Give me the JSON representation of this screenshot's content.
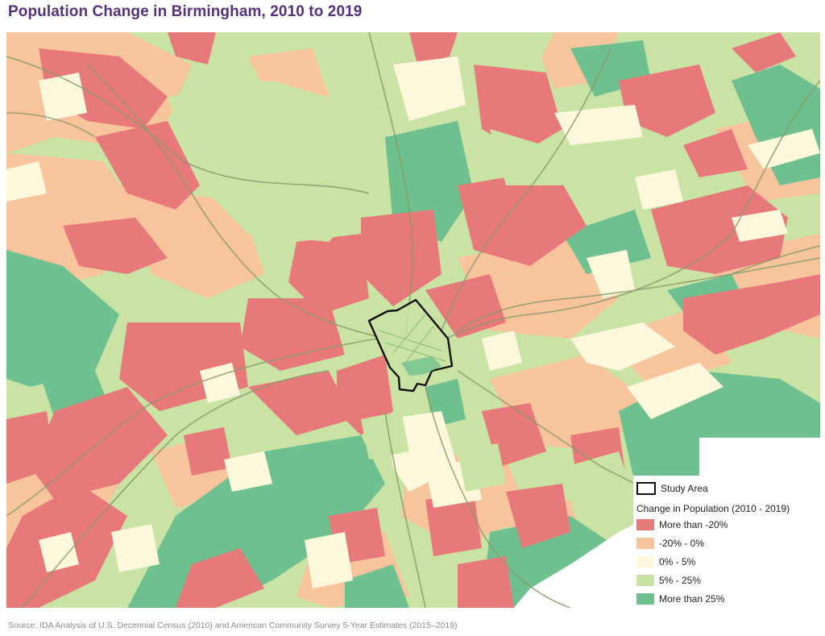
{
  "title": "Population Change in Birmingham, 2010 to 2019",
  "source": "Source: IDA Analysis of U.S. Decennial Census (2010) and American Community Survey 5-Year Estimates (2015–2019)",
  "legend": {
    "study_area_label": "Study Area",
    "title": "Change in Population (2010 - 2019)",
    "items": [
      {
        "label": "More than -20%",
        "color": "#e8797a"
      },
      {
        "label": "-20% - 0%",
        "color": "#f7c49c"
      },
      {
        "label": "0% - 5%",
        "color": "#fdf8dc"
      },
      {
        "label": "5% - 25%",
        "color": "#c8e3a4"
      },
      {
        "label": "More than 25%",
        "color": "#6fc08f"
      }
    ]
  },
  "colors": {
    "title": "#55327a",
    "study_area_outline": "#111111",
    "roads": "#8a9a6a"
  }
}
